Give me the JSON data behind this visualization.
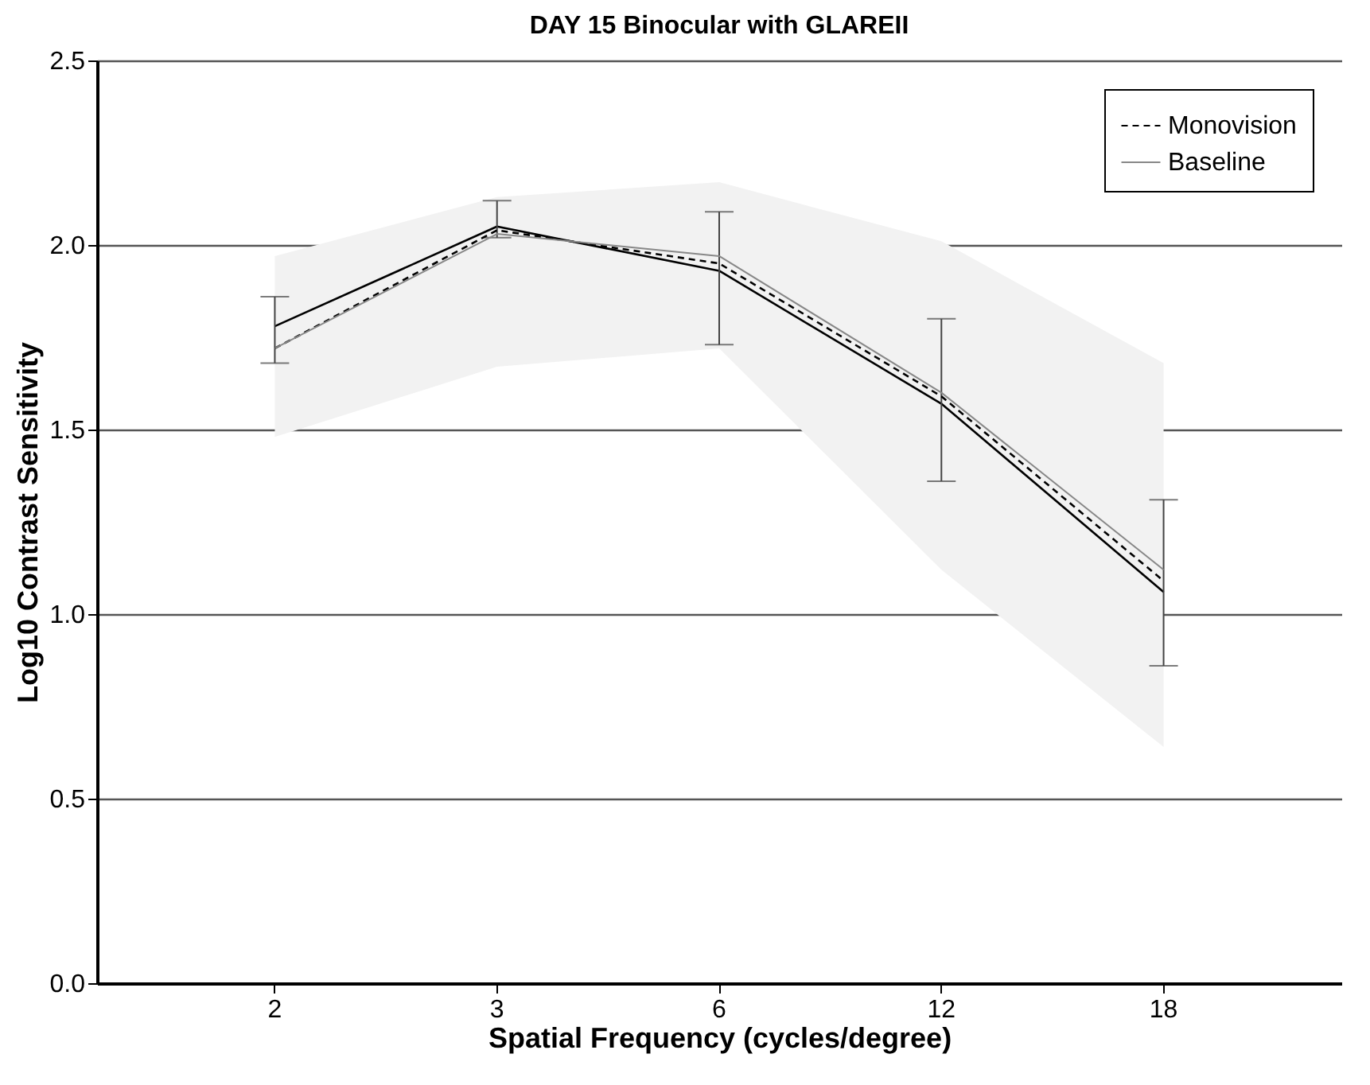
{
  "chart_data": {
    "type": "line",
    "title": "DAY 15 Binocular with GLAREII",
    "xlabel": "Spatial Frequency (cycles/degree)",
    "ylabel": "Log10 Contrast Sensitivity",
    "categories": [
      "2",
      "3",
      "6",
      "12",
      "18"
    ],
    "series": [
      {
        "color": "#000000",
        "line_style": "solid",
        "values": [
          1.78,
          2.05,
          1.93,
          1.57,
          1.06
        ],
        "errors": [
          [
            1.68,
            1.86
          ],
          [
            2.02,
            2.12
          ],
          [
            1.73,
            2.09
          ],
          [
            1.36,
            1.8
          ],
          [
            0.86,
            1.31
          ]
        ]
      },
      {
        "name": "Monovision",
        "color": "#000000",
        "line_style": "dashed",
        "values": [
          1.72,
          2.04,
          1.95,
          1.59,
          1.09
        ]
      },
      {
        "name": "Baseline",
        "color": "#888888",
        "line_style": "solid",
        "values": [
          1.72,
          2.03,
          1.97,
          1.6,
          1.12
        ],
        "lower": [
          1.48,
          1.67,
          1.72,
          1.12,
          0.64
        ],
        "upper": [
          1.97,
          2.13,
          2.17,
          2.01,
          1.68
        ]
      }
    ],
    "ylim": [
      0,
      2.5
    ],
    "yticks": [
      {
        "value": 0,
        "label": "0.0"
      },
      {
        "value": 0.5,
        "label": "0.5"
      },
      {
        "value": 1,
        "label": "1.0"
      },
      {
        "value": 1.5,
        "label": "1.5"
      },
      {
        "value": 2,
        "label": "2.0"
      },
      {
        "value": 2.5,
        "label": "2.5"
      }
    ],
    "grid": "y",
    "legend": "top right",
    "marker": "none"
  }
}
